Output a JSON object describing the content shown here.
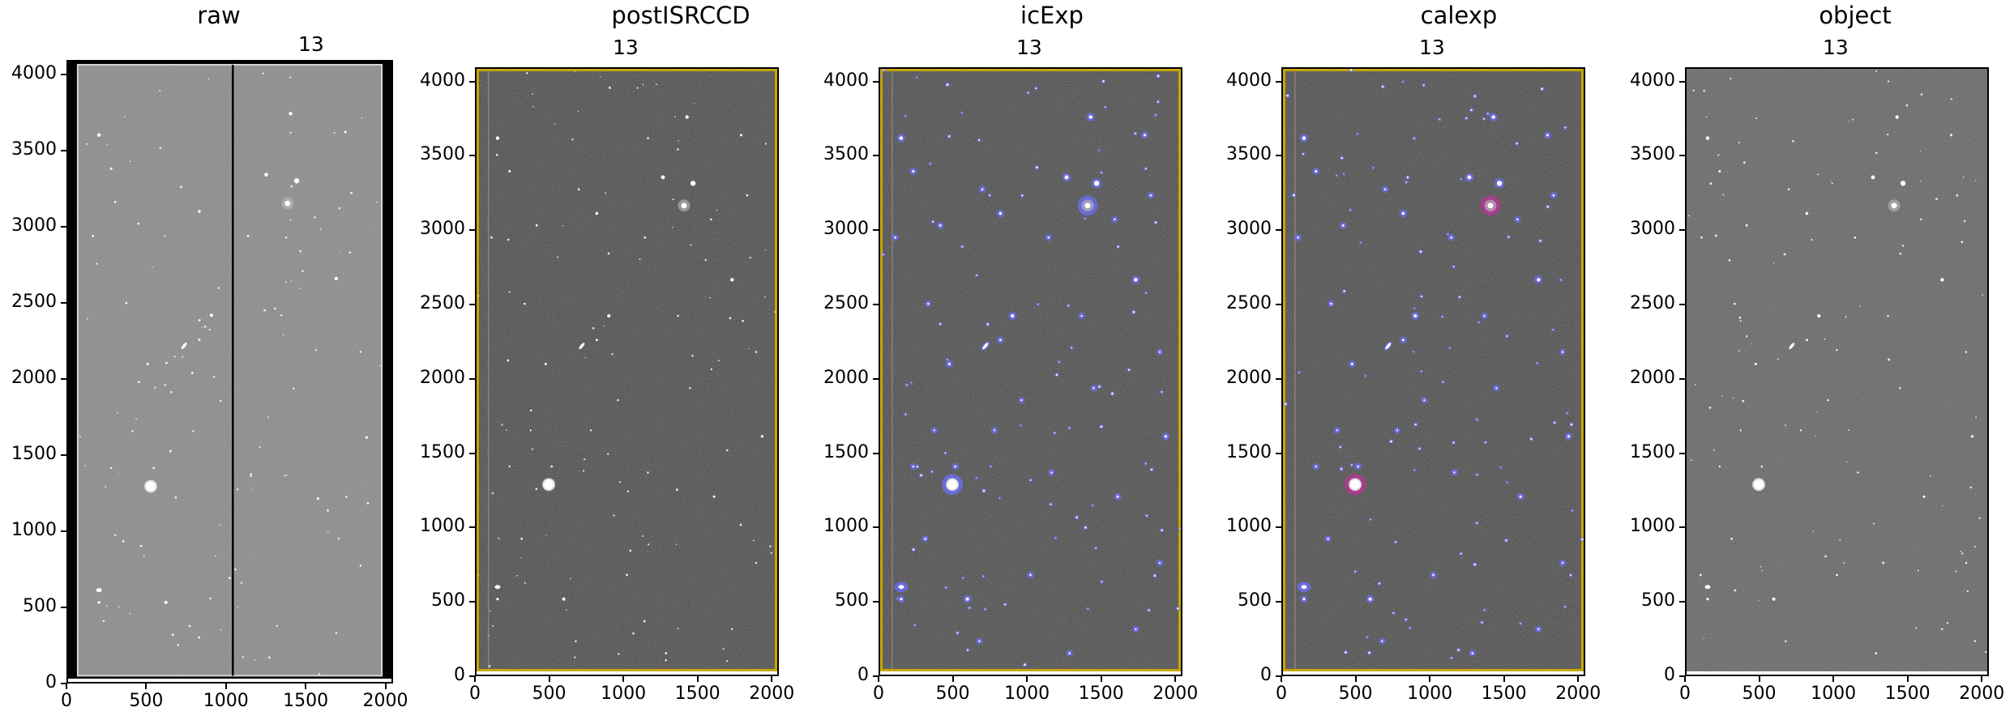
{
  "panels": [
    {
      "title": "raw",
      "ccd": "13",
      "style": "raw"
    },
    {
      "title": "postISRCCD",
      "ccd": "13",
      "style": "isr"
    },
    {
      "title": "icExp",
      "ccd": "13",
      "style": "icexp"
    },
    {
      "title": "calexp",
      "ccd": "13",
      "style": "calexp"
    },
    {
      "title": "object",
      "ccd": "13",
      "style": "object"
    }
  ],
  "axes": {
    "y_ticks": [
      "0",
      "500",
      "1000",
      "1500",
      "2000",
      "2500",
      "3000",
      "3500",
      "4000"
    ],
    "x_ticks": [
      "0",
      "500",
      "1000",
      "1500",
      "2000"
    ],
    "xlim": [
      0,
      2048
    ],
    "ylim": [
      0,
      4096
    ]
  },
  "colors": {
    "mask_border": "#c8a800",
    "detection_mask": "#6e6eff",
    "detection_mask_bright": "#c0309a",
    "raw_border": "#000000"
  }
}
